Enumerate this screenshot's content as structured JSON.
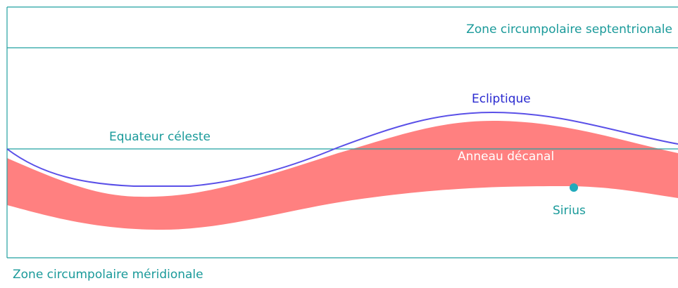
{
  "labels": {
    "north_zone": "Zone circumpolaire septentrionale",
    "equator": "Equateur céleste",
    "ecliptic": "Ecliptique",
    "ring": "Anneau décanal",
    "star": "Sirius",
    "south_zone": "Zone circumpolaire méridionale"
  }
}
